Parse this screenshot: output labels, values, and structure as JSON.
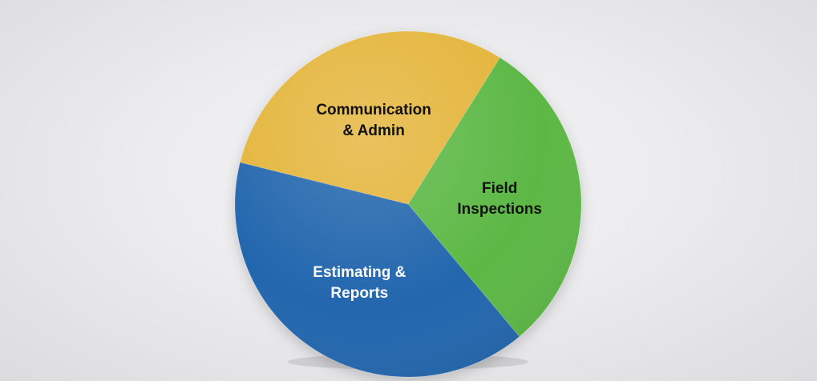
{
  "chart_data": {
    "type": "pie",
    "title": "",
    "slices": [
      {
        "label_lines": [
          "Field",
          "Inspections"
        ],
        "value": 30,
        "color": "#5cb845",
        "text_color": "#111111"
      },
      {
        "label_lines": [
          "Estimating &",
          "Reports"
        ],
        "value": 40,
        "color": "#2266ad",
        "text_color": "#ffffff"
      },
      {
        "label_lines": [
          "Communication",
          "& Admin"
        ],
        "value": 30,
        "color": "#e4b53b",
        "text_color": "#111111"
      }
    ],
    "legend": "none",
    "start_angle_deg": 32
  }
}
